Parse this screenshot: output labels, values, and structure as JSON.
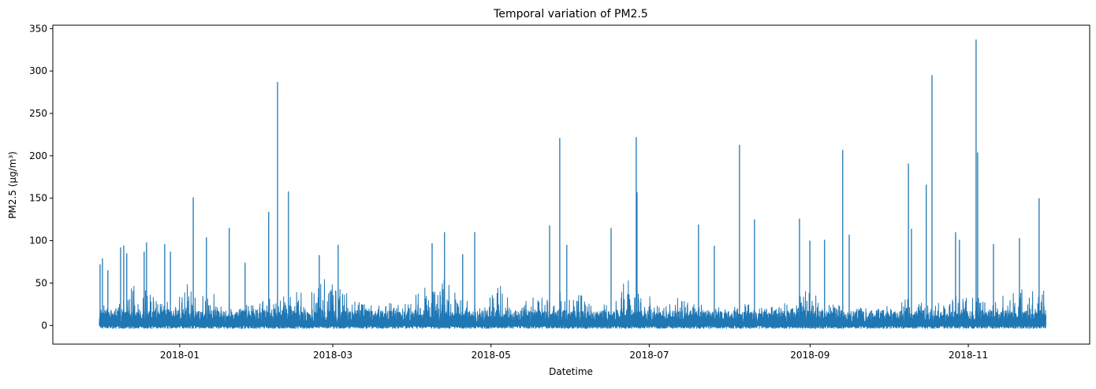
{
  "chart_data": {
    "type": "line",
    "title": "Temporal variation of PM2.5",
    "xlabel": "Datetime",
    "ylabel": "PM2.5 (µg/m³)",
    "xlim": [
      "2017-11-13T02:00",
      "2018-12-17T19:00"
    ],
    "ylim": [
      -22,
      354
    ],
    "x_ticks": [
      "2018-01",
      "2018-03",
      "2018-05",
      "2018-07",
      "2018-09",
      "2018-11"
    ],
    "y_ticks": [
      0,
      50,
      100,
      150,
      200,
      250,
      300,
      350
    ],
    "grid": false,
    "legend": "none",
    "color": "#1f77b4",
    "data_range": [
      "2017-12-01",
      "2018-11-30"
    ],
    "baseline_min": -4,
    "weekly_typical_max": {
      "week_start": "2017-12-01",
      "values": [
        30,
        28,
        55,
        35,
        30,
        55,
        45,
        30,
        25,
        35,
        45,
        40,
        50,
        65,
        35,
        30,
        28,
        30,
        50,
        60,
        35,
        22,
        55,
        28,
        35,
        50,
        40,
        35,
        28,
        60,
        40,
        30,
        35,
        30,
        25,
        30,
        25,
        25,
        30,
        45,
        30,
        25,
        22,
        25,
        30,
        35,
        30,
        40,
        45,
        30,
        45,
        55
      ]
    },
    "peaks": [
      {
        "t": "2017-12-01T07:00",
        "v": 72
      },
      {
        "t": "2017-12-02T05:00",
        "v": 79
      },
      {
        "t": "2017-12-04T07:00",
        "v": 65
      },
      {
        "t": "2017-12-09T05:00",
        "v": 92
      },
      {
        "t": "2017-12-10T10:00",
        "v": 94
      },
      {
        "t": "2017-12-11T14:00",
        "v": 85
      },
      {
        "t": "2017-12-18T07:00",
        "v": 87
      },
      {
        "t": "2017-12-19T05:00",
        "v": 98
      },
      {
        "t": "2017-12-26T05:00",
        "v": 96
      },
      {
        "t": "2017-12-28T10:00",
        "v": 87
      },
      {
        "t": "2018-01-06T05:00",
        "v": 151
      },
      {
        "t": "2018-01-11T07:00",
        "v": 104
      },
      {
        "t": "2018-01-20T02:00",
        "v": 115
      },
      {
        "t": "2018-01-26T05:00",
        "v": 74
      },
      {
        "t": "2018-02-04T07:00",
        "v": 134
      },
      {
        "t": "2018-02-07T17:00",
        "v": 287
      },
      {
        "t": "2018-02-11T22:00",
        "v": 158
      },
      {
        "t": "2018-02-23T19:00",
        "v": 83
      },
      {
        "t": "2018-03-03T02:00",
        "v": 95
      },
      {
        "t": "2018-04-08T07:00",
        "v": 97
      },
      {
        "t": "2018-04-13T02:00",
        "v": 110
      },
      {
        "t": "2018-04-20T02:00",
        "v": 84
      },
      {
        "t": "2018-04-24T17:00",
        "v": 110
      },
      {
        "t": "2018-05-23T14:00",
        "v": 118
      },
      {
        "t": "2018-05-27T12:00",
        "v": 221
      },
      {
        "t": "2018-05-30T05:00",
        "v": 95
      },
      {
        "t": "2018-06-16T07:00",
        "v": 115
      },
      {
        "t": "2018-06-26T00:00",
        "v": 222
      },
      {
        "t": "2018-06-26T07:00",
        "v": 157
      },
      {
        "t": "2018-07-20T00:00",
        "v": 119
      },
      {
        "t": "2018-07-26T02:00",
        "v": 94
      },
      {
        "t": "2018-08-04T19:00",
        "v": 213
      },
      {
        "t": "2018-08-10T14:00",
        "v": 125
      },
      {
        "t": "2018-08-27T22:00",
        "v": 126
      },
      {
        "t": "2018-08-31T22:00",
        "v": 100
      },
      {
        "t": "2018-09-06T14:00",
        "v": 101
      },
      {
        "t": "2018-09-13T14:00",
        "v": 207
      },
      {
        "t": "2018-09-16T02:00",
        "v": 107
      },
      {
        "t": "2018-10-08T22:00",
        "v": 191
      },
      {
        "t": "2018-10-10T02:00",
        "v": 114
      },
      {
        "t": "2018-10-15T19:00",
        "v": 166
      },
      {
        "t": "2018-10-18T00:00",
        "v": 295
      },
      {
        "t": "2018-10-27T02:00",
        "v": 110
      },
      {
        "t": "2018-10-28T14:00",
        "v": 101
      },
      {
        "t": "2018-11-04T00:00",
        "v": 337
      },
      {
        "t": "2018-11-04T14:00",
        "v": 204
      },
      {
        "t": "2018-11-10T17:00",
        "v": 96
      },
      {
        "t": "2018-11-20T17:00",
        "v": 103
      },
      {
        "t": "2018-11-28T07:00",
        "v": 150
      }
    ]
  }
}
